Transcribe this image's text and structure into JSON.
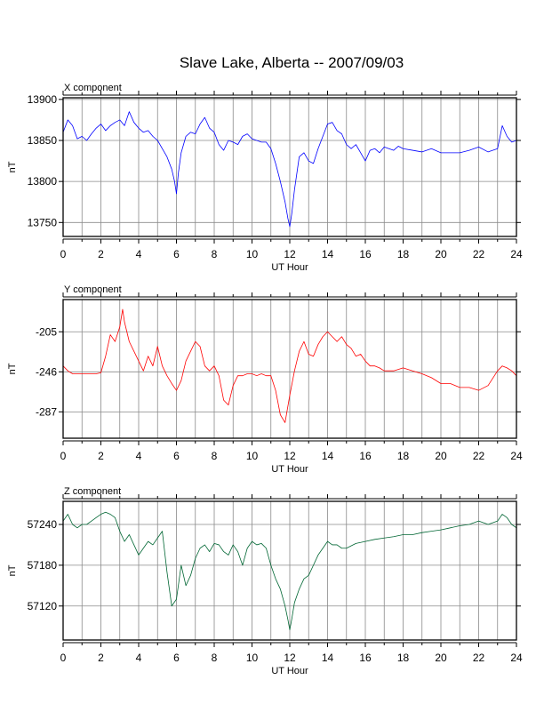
{
  "title": "Slave Lake, Alberta -- 2007/09/03",
  "chart_data": [
    {
      "type": "line",
      "panel_title": "X component",
      "xlabel": "UT Hour",
      "ylabel": "nT",
      "xlim": [
        0,
        24
      ],
      "ylim": [
        13733,
        13902
      ],
      "xticks": [
        0,
        2,
        4,
        6,
        8,
        10,
        12,
        14,
        16,
        18,
        20,
        22,
        24
      ],
      "yticks": [
        13750,
        13800,
        13850,
        13900
      ],
      "grid": true,
      "series": [
        {
          "color": "#0000ff",
          "x": [
            0,
            0.25,
            0.5,
            0.75,
            1,
            1.25,
            1.5,
            1.75,
            2,
            2.25,
            2.5,
            2.75,
            3,
            3.25,
            3.5,
            3.75,
            4,
            4.25,
            4.5,
            4.75,
            5,
            5.25,
            5.5,
            5.75,
            5.9,
            6,
            6.1,
            6.25,
            6.5,
            6.75,
            7,
            7.25,
            7.5,
            7.75,
            8,
            8.25,
            8.5,
            8.75,
            9,
            9.25,
            9.5,
            9.75,
            10,
            10.25,
            10.5,
            10.75,
            11,
            11.25,
            11.5,
            11.75,
            11.9,
            12,
            12.1,
            12.25,
            12.5,
            12.75,
            13,
            13.25,
            13.5,
            13.75,
            14,
            14.25,
            14.5,
            14.75,
            15,
            15.25,
            15.5,
            15.75,
            16,
            16.25,
            16.5,
            16.75,
            17,
            17.25,
            17.5,
            17.75,
            18,
            18.5,
            19,
            19.5,
            20,
            20.5,
            21,
            21.5,
            22,
            22.5,
            23,
            23.25,
            23.5,
            23.75,
            24
          ],
          "y": [
            13860,
            13875,
            13868,
            13852,
            13855,
            13850,
            13858,
            13865,
            13870,
            13862,
            13868,
            13872,
            13875,
            13868,
            13885,
            13872,
            13865,
            13860,
            13862,
            13855,
            13850,
            13840,
            13830,
            13815,
            13800,
            13785,
            13810,
            13835,
            13855,
            13860,
            13858,
            13870,
            13878,
            13865,
            13860,
            13845,
            13838,
            13850,
            13848,
            13845,
            13855,
            13858,
            13852,
            13850,
            13848,
            13848,
            13840,
            13822,
            13800,
            13775,
            13755,
            13745,
            13760,
            13790,
            13830,
            13835,
            13825,
            13822,
            13840,
            13855,
            13870,
            13872,
            13862,
            13858,
            13845,
            13840,
            13845,
            13835,
            13825,
            13838,
            13840,
            13835,
            13842,
            13840,
            13838,
            13843,
            13840,
            13838,
            13836,
            13840,
            13835,
            13835,
            13835,
            13838,
            13842,
            13836,
            13840,
            13868,
            13855,
            13848,
            13850
          ]
        }
      ]
    },
    {
      "type": "line",
      "panel_title": "Y component",
      "xlabel": "UT Hour",
      "ylabel": "nT",
      "xlim": [
        0,
        24
      ],
      "ylim": [
        -314,
        -172
      ],
      "xticks": [
        0,
        2,
        4,
        6,
        8,
        10,
        12,
        14,
        16,
        18,
        20,
        22,
        24
      ],
      "yticks": [
        -205,
        -246,
        -287
      ],
      "grid": true,
      "series": [
        {
          "color": "#ff0000",
          "x": [
            0,
            0.25,
            0.5,
            0.75,
            1,
            1.25,
            1.5,
            1.75,
            2,
            2.25,
            2.5,
            2.75,
            3,
            3.15,
            3.25,
            3.5,
            3.75,
            4,
            4.25,
            4.5,
            4.75,
            5,
            5.25,
            5.5,
            5.75,
            6,
            6.25,
            6.5,
            6.75,
            7,
            7.25,
            7.5,
            7.75,
            8,
            8.25,
            8.5,
            8.75,
            9,
            9.25,
            9.5,
            9.75,
            10,
            10.25,
            10.5,
            10.75,
            11,
            11.25,
            11.5,
            11.75,
            12,
            12.25,
            12.5,
            12.75,
            13,
            13.25,
            13.5,
            13.75,
            14,
            14.25,
            14.5,
            14.75,
            15,
            15.25,
            15.5,
            15.75,
            16,
            16.25,
            16.5,
            16.75,
            17,
            17.5,
            18,
            18.5,
            19,
            19.5,
            20,
            20.5,
            21,
            21.5,
            22,
            22.5,
            23,
            23.25,
            23.5,
            23.75,
            24
          ],
          "y": [
            -240,
            -245,
            -248,
            -248,
            -248,
            -248,
            -248,
            -248,
            -247,
            -230,
            -208,
            -215,
            -200,
            -182,
            -195,
            -215,
            -225,
            -235,
            -245,
            -230,
            -240,
            -220,
            -240,
            -250,
            -258,
            -265,
            -255,
            -235,
            -225,
            -215,
            -220,
            -240,
            -245,
            -240,
            -250,
            -275,
            -280,
            -260,
            -250,
            -250,
            -248,
            -248,
            -250,
            -248,
            -250,
            -250,
            -265,
            -290,
            -298,
            -270,
            -245,
            -225,
            -215,
            -228,
            -230,
            -218,
            -210,
            -205,
            -210,
            -215,
            -210,
            -218,
            -222,
            -230,
            -228,
            -235,
            -240,
            -240,
            -242,
            -245,
            -245,
            -242,
            -245,
            -248,
            -252,
            -258,
            -258,
            -262,
            -262,
            -265,
            -260,
            -245,
            -240,
            -242,
            -245,
            -250
          ]
        }
      ]
    },
    {
      "type": "line",
      "panel_title": "Z component",
      "xlabel": "UT Hour",
      "ylabel": "nT",
      "xlim": [
        0,
        24
      ],
      "ylim": [
        57070,
        57274
      ],
      "xticks": [
        0,
        2,
        4,
        6,
        8,
        10,
        12,
        14,
        16,
        18,
        20,
        22,
        24
      ],
      "yticks": [
        57120,
        57180,
        57240
      ],
      "grid": true,
      "series": [
        {
          "color": "#006633",
          "x": [
            0,
            0.25,
            0.5,
            0.75,
            1,
            1.25,
            1.5,
            1.75,
            2,
            2.25,
            2.5,
            2.75,
            3,
            3.25,
            3.5,
            3.75,
            4,
            4.25,
            4.5,
            4.75,
            5,
            5.25,
            5.5,
            5.75,
            6,
            6.25,
            6.5,
            6.75,
            7,
            7.25,
            7.5,
            7.75,
            8,
            8.25,
            8.5,
            8.75,
            9,
            9.25,
            9.5,
            9.75,
            10,
            10.25,
            10.5,
            10.75,
            11,
            11.25,
            11.5,
            11.75,
            11.9,
            12,
            12.1,
            12.25,
            12.5,
            12.75,
            13,
            13.25,
            13.5,
            13.75,
            14,
            14.25,
            14.5,
            14.75,
            15,
            15.5,
            16,
            16.5,
            17,
            17.5,
            18,
            18.5,
            19,
            19.5,
            20,
            20.5,
            21,
            21.5,
            22,
            22.5,
            23,
            23.25,
            23.5,
            23.75,
            24
          ],
          "y": [
            57245,
            57255,
            57240,
            57235,
            57240,
            57240,
            57245,
            57250,
            57255,
            57258,
            57255,
            57250,
            57230,
            57215,
            57225,
            57210,
            57195,
            57205,
            57215,
            57210,
            57220,
            57230,
            57170,
            57120,
            57130,
            57180,
            57150,
            57165,
            57190,
            57205,
            57210,
            57200,
            57212,
            57210,
            57200,
            57195,
            57210,
            57200,
            57180,
            57205,
            57215,
            57210,
            57212,
            57205,
            57180,
            57160,
            57145,
            57120,
            57100,
            57085,
            57100,
            57125,
            57145,
            57160,
            57165,
            57180,
            57195,
            57205,
            57215,
            57210,
            57210,
            57205,
            57205,
            57212,
            57215,
            57218,
            57220,
            57222,
            57225,
            57225,
            57228,
            57230,
            57232,
            57235,
            57238,
            57240,
            57245,
            57240,
            57245,
            57255,
            57250,
            57240,
            57235
          ]
        }
      ]
    }
  ]
}
